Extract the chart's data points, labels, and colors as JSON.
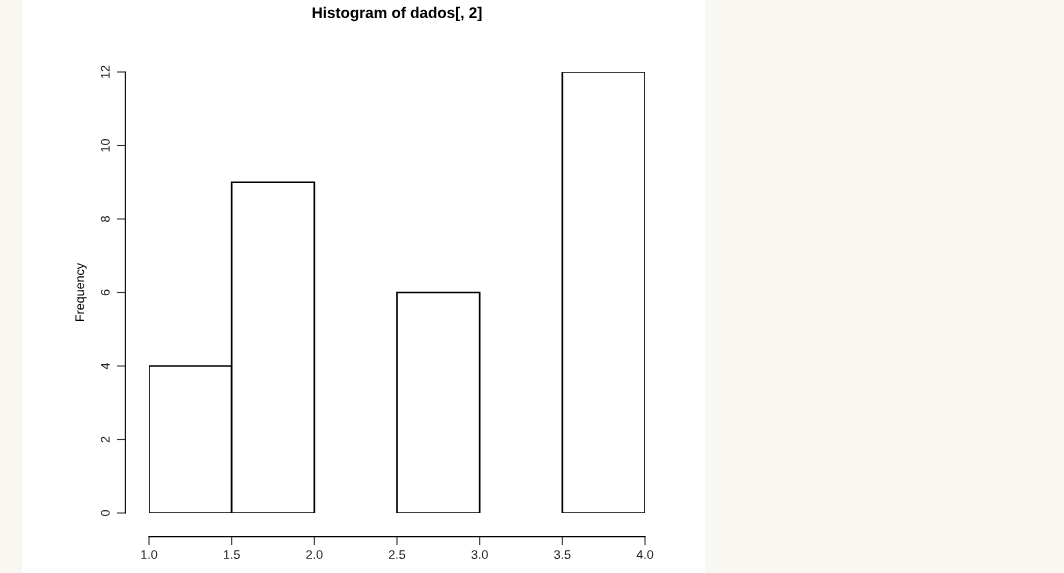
{
  "chart_data": {
    "type": "histogram",
    "title": "Histogram of dados[, 2]",
    "ylabel": "Frequency",
    "bins": [
      1.0,
      1.5,
      2.0,
      2.5,
      3.0,
      3.5,
      4.0
    ],
    "values": [
      4,
      9,
      0,
      6,
      0,
      12
    ],
    "color": "#ffffff",
    "xlim": [
      1.0,
      4.0
    ],
    "xticks": [
      {
        "value": 1.0,
        "label": "1.0"
      },
      {
        "value": 1.5,
        "label": "1.5"
      },
      {
        "value": 2.0,
        "label": "2.0"
      },
      {
        "value": 2.5,
        "label": "2.5"
      },
      {
        "value": 3.0,
        "label": "3.0"
      },
      {
        "value": 3.5,
        "label": "3.5"
      },
      {
        "value": 4.0,
        "label": "4.0"
      }
    ],
    "ylim": [
      0,
      12
    ],
    "yticks": [
      0,
      2,
      4,
      6,
      8,
      10,
      12
    ],
    "grid": false
  }
}
